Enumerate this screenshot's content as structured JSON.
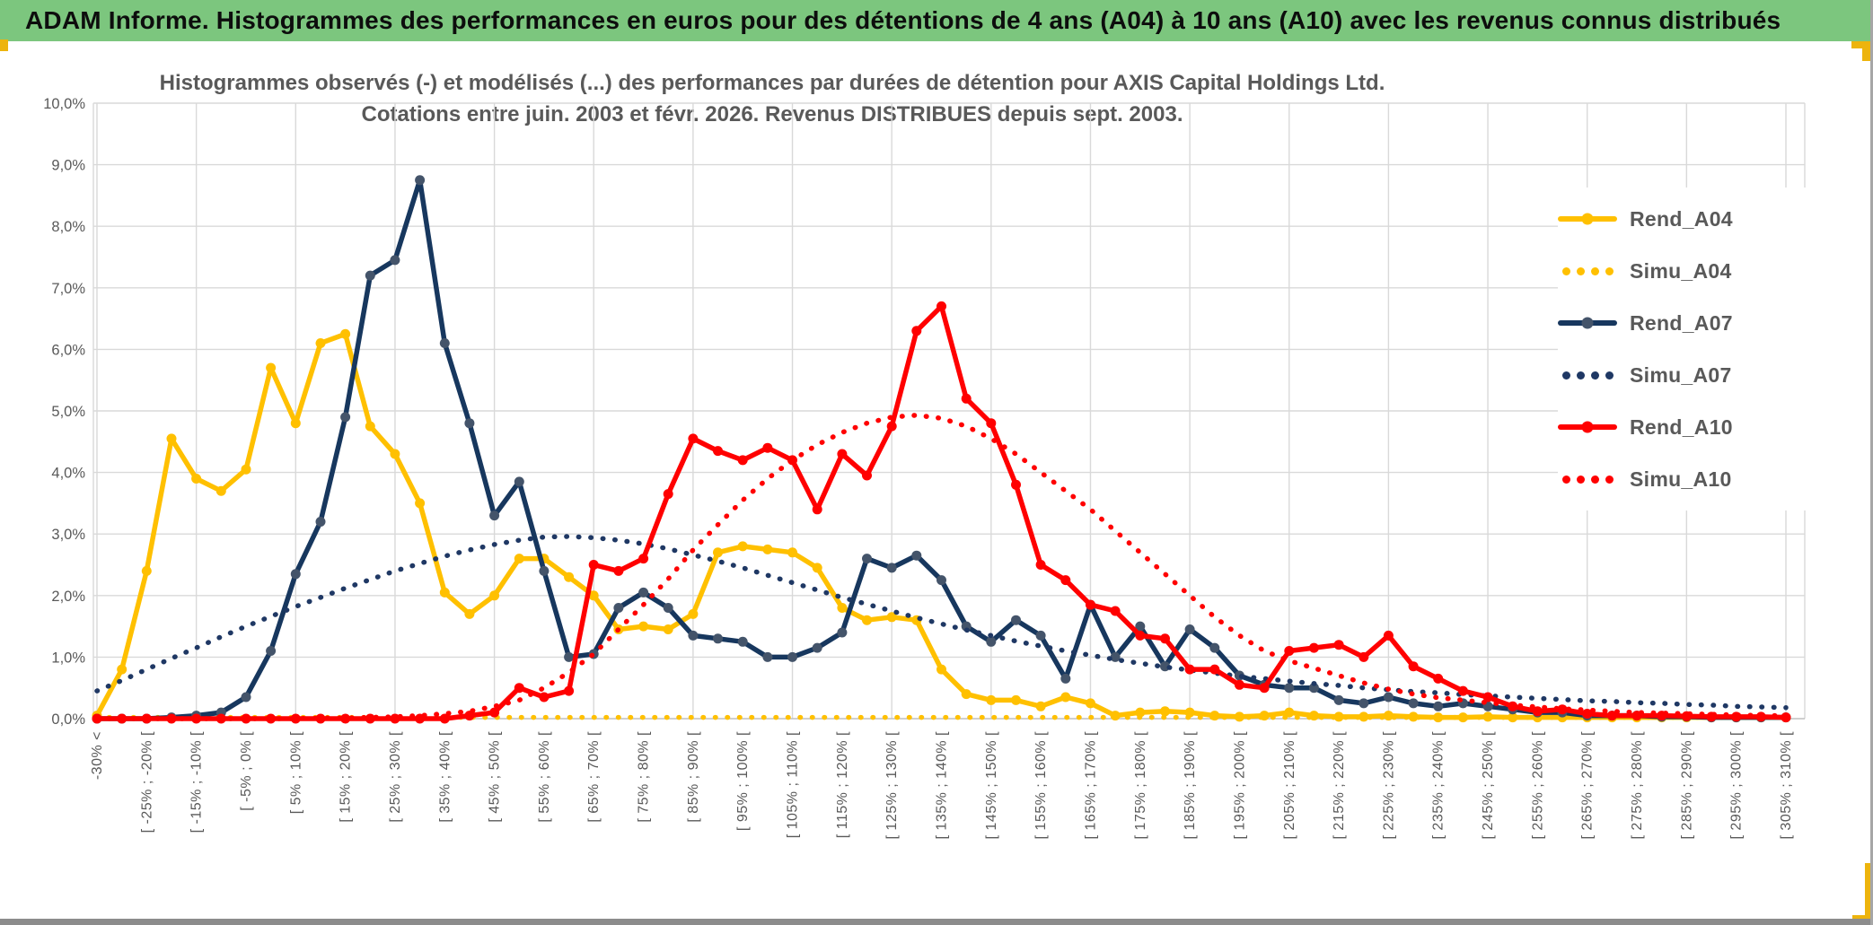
{
  "window": {
    "title": "ADAM Informe. Histogrammes des performances en euros pour des détentions de 4 ans (A04) à 10 ans (A10) avec les revenus connus distribués"
  },
  "chart_data": {
    "type": "line",
    "title_line1": "Histogrammes observés (-) et modélisés (...) des performances par durées de détention pour AXIS Capital Holdings Ltd.",
    "title_line2": "Cotations entre juin. 2003 et févr. 2026. Revenus DISTRIBUES depuis sept. 2003.",
    "ylim": [
      0,
      10
    ],
    "y_tick_labels": [
      "0,0%",
      "1,0%",
      "2,0%",
      "3,0%",
      "4,0%",
      "5,0%",
      "6,0%",
      "7,0%",
      "8,0%",
      "9,0%",
      "10,0%"
    ],
    "grid": "on",
    "legend_position": "right-overlay",
    "num_bins": 69,
    "x_label_every": 2,
    "x_labels": [
      "-30% <",
      "[ -25% ; -20% [",
      "[ -15% ; -10% [",
      "[ -5% ; 0% [",
      "[ 5% ; 10% [",
      "[ 15% ; 20% [",
      "[ 25% ; 30% [",
      "[ 35% ; 40% [",
      "[ 45% ; 50% [",
      "[ 55% ; 60% [",
      "[ 65% ; 70% [",
      "[ 75% ; 80% [",
      "[ 85% ; 90% [",
      "[ 95% ; 100% [",
      "[ 105% ; 110% [",
      "[ 115% ; 120% [",
      "[ 125% ; 130% [",
      "[ 135% ; 140% [",
      "[ 145% ; 150% [",
      "[ 155% ; 160% [",
      "[ 165% ; 170% [",
      "[ 175% ; 180% [",
      "[ 185% ; 190% [",
      "[ 195% ; 200% [",
      "[ 205% ; 210% [",
      "[ 215% ; 220% [",
      "[ 225% ; 230% [",
      "[ 235% ; 240% [",
      "[ 245% ; 250% [",
      "[ 255% ; 260% [",
      "[ 265% ; 270% [",
      "[ 275% ; 280% [",
      "[ 285% ; 290% [",
      "[ 295% ; 300% [",
      "[ 305% ; 310% ["
    ],
    "colors": {
      "gold": "#FFC000",
      "navy": "#17375E",
      "navy_marker": "#44546A",
      "red": "#FF0000",
      "grid": "#D9D9D9",
      "axis": "#BFBFBF",
      "text": "#595959"
    },
    "series": [
      {
        "name": "Rend_A04",
        "style": "solid",
        "color": "#FFC000",
        "marker_color": "#FFC000",
        "values": [
          0.05,
          0.8,
          2.4,
          4.55,
          3.9,
          3.7,
          4.05,
          5.7,
          4.8,
          6.1,
          6.25,
          4.75,
          4.3,
          3.5,
          2.05,
          1.7,
          2.0,
          2.6,
          2.6,
          2.3,
          2.0,
          1.45,
          1.5,
          1.45,
          1.7,
          2.7,
          2.8,
          2.75,
          2.7,
          2.45,
          1.8,
          1.6,
          1.65,
          1.6,
          0.8,
          0.4,
          0.3,
          0.3,
          0.2,
          0.35,
          0.25,
          0.05,
          0.1,
          0.12,
          0.1,
          0.05,
          0.03,
          0.05,
          0.1,
          0.05,
          0.03,
          0.03,
          0.05,
          0.03,
          0.02,
          0.02,
          0.03,
          0.02,
          0.02,
          0.02,
          0.02,
          0.02,
          0.02,
          0.02,
          0.02,
          0.02,
          0.02,
          0.02,
          0.02
        ]
      },
      {
        "name": "Simu_A04",
        "style": "dotted",
        "color": "#FFC000",
        "values": [
          0.02,
          0.02,
          0.02,
          0.02,
          0.02,
          0.02,
          0.02,
          0.02,
          0.02,
          0.02,
          0.02,
          0.02,
          0.02,
          0.02,
          0.02,
          0.02,
          0.02,
          0.02,
          0.02,
          0.02,
          0.02,
          0.02,
          0.02,
          0.02,
          0.02,
          0.02,
          0.02,
          0.02,
          0.02,
          0.02,
          0.02,
          0.02,
          0.02,
          0.02,
          0.02,
          0.02,
          0.02,
          0.02,
          0.02,
          0.02,
          0.02,
          0.02,
          0.02,
          0.02,
          0.02,
          0.02,
          0.02,
          0.02,
          0.02,
          0.02,
          0.02,
          0.02,
          0.02,
          0.02,
          0.02,
          0.02,
          0.02,
          0.02,
          0.02,
          0.02,
          0.02,
          0.02,
          0.02,
          0.02,
          0.02,
          0.02,
          0.02,
          0.02,
          0.02
        ]
      },
      {
        "name": "Rend_A07",
        "style": "solid",
        "color": "#17375E",
        "marker_color": "#44546A",
        "values": [
          0,
          0,
          0,
          0.02,
          0.05,
          0.1,
          0.35,
          1.1,
          2.35,
          3.2,
          4.9,
          7.2,
          7.45,
          8.75,
          6.1,
          4.8,
          3.3,
          3.85,
          2.4,
          1.0,
          1.05,
          1.8,
          2.05,
          1.8,
          1.35,
          1.3,
          1.25,
          1.0,
          1.0,
          1.15,
          1.4,
          2.6,
          2.45,
          2.65,
          2.25,
          1.5,
          1.25,
          1.6,
          1.35,
          0.65,
          1.85,
          1.0,
          1.5,
          0.85,
          1.45,
          1.15,
          0.7,
          0.55,
          0.5,
          0.5,
          0.3,
          0.25,
          0.35,
          0.25,
          0.2,
          0.25,
          0.2,
          0.15,
          0.1,
          0.1,
          0.05,
          0.05,
          0.05,
          0.03,
          0.03,
          0.02,
          0.02,
          0.02,
          0.02
        ]
      },
      {
        "name": "Simu_A07",
        "style": "dotted",
        "color": "#1F3864",
        "values": [
          0.45,
          0.62,
          0.8,
          0.98,
          1.15,
          1.33,
          1.5,
          1.66,
          1.82,
          1.97,
          2.12,
          2.26,
          2.4,
          2.52,
          2.64,
          2.74,
          2.83,
          2.9,
          2.95,
          2.96,
          2.94,
          2.9,
          2.84,
          2.76,
          2.66,
          2.56,
          2.45,
          2.33,
          2.21,
          2.09,
          1.97,
          1.86,
          1.75,
          1.64,
          1.54,
          1.44,
          1.35,
          1.26,
          1.18,
          1.1,
          1.03,
          0.96,
          0.9,
          0.84,
          0.79,
          0.74,
          0.69,
          0.65,
          0.61,
          0.57,
          0.54,
          0.5,
          0.47,
          0.44,
          0.42,
          0.39,
          0.37,
          0.35,
          0.33,
          0.31,
          0.29,
          0.28,
          0.26,
          0.25,
          0.23,
          0.22,
          0.2,
          0.19,
          0.18
        ]
      },
      {
        "name": "Rend_A10",
        "style": "solid",
        "color": "#FF0000",
        "marker_color": "#FF0000",
        "values": [
          0,
          0,
          0,
          0,
          0,
          0,
          0,
          0,
          0,
          0,
          0,
          0,
          0,
          0,
          0,
          0.05,
          0.1,
          0.5,
          0.35,
          0.45,
          2.5,
          2.4,
          2.6,
          3.65,
          4.55,
          4.35,
          4.2,
          4.4,
          4.2,
          3.4,
          4.3,
          3.95,
          4.75,
          6.3,
          6.7,
          5.2,
          4.8,
          3.8,
          2.5,
          2.25,
          1.85,
          1.75,
          1.35,
          1.3,
          0.8,
          0.8,
          0.55,
          0.5,
          1.1,
          1.15,
          1.2,
          1.0,
          1.35,
          0.85,
          0.65,
          0.45,
          0.35,
          0.2,
          0.12,
          0.15,
          0.08,
          0.05,
          0.05,
          0.05,
          0.04,
          0.03,
          0.03,
          0.03,
          0.02
        ]
      },
      {
        "name": "Simu_A10",
        "style": "dotted",
        "color": "#FF0000",
        "values": [
          0,
          0,
          0,
          0,
          0,
          0,
          0,
          0,
          0,
          0.01,
          0.01,
          0.02,
          0.03,
          0.05,
          0.08,
          0.12,
          0.2,
          0.3,
          0.5,
          0.75,
          1.05,
          1.45,
          1.85,
          2.27,
          2.74,
          3.15,
          3.55,
          3.9,
          4.2,
          4.45,
          4.65,
          4.8,
          4.9,
          4.93,
          4.88,
          4.75,
          4.55,
          4.3,
          4.0,
          3.7,
          3.4,
          3.05,
          2.7,
          2.35,
          2.0,
          1.65,
          1.35,
          1.1,
          0.94,
          0.82,
          0.7,
          0.58,
          0.48,
          0.4,
          0.34,
          0.3,
          0.26,
          0.22,
          0.19,
          0.16,
          0.14,
          0.12,
          0.1,
          0.09,
          0.08,
          0.07,
          0.06,
          0.05,
          0.05
        ]
      }
    ]
  }
}
